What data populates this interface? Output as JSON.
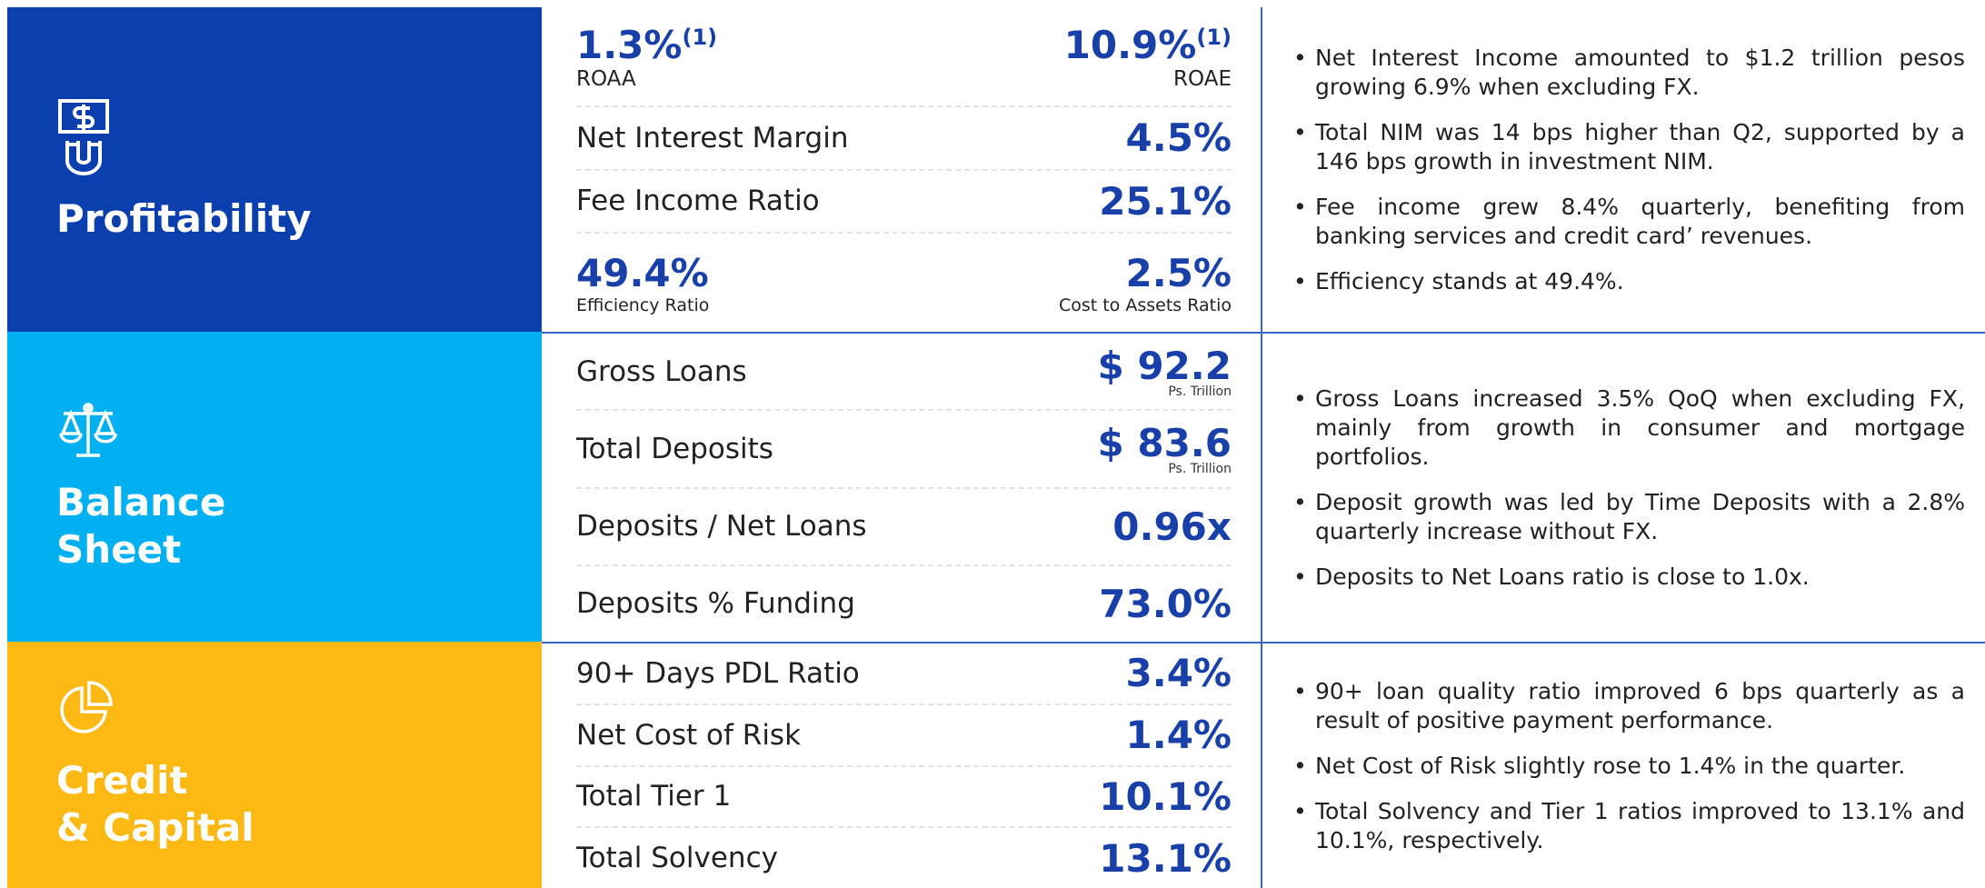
{
  "sections": [
    {
      "title": [
        "Profitability"
      ],
      "metrics": [
        {
          "left": {
            "value": "1.3%",
            "note": "(1)",
            "label": "ROAA"
          },
          "right": {
            "value": "10.9%",
            "note": "(1)",
            "label": "ROAE"
          }
        },
        {
          "label": "Net Interest Margin",
          "value": "4.5%"
        },
        {
          "label": "Fee Income Ratio",
          "value": "25.1%"
        },
        {
          "left": {
            "value": "49.4%",
            "label": "Efficiency Ratio"
          },
          "right": {
            "value": "2.5%",
            "label": "Cost to Assets Ratio"
          }
        }
      ],
      "bullets": [
        "Net Interest Income amounted to $1.2 trillion pesos growing 6.9% when excluding FX.",
        "Total NIM was 14 bps higher than Q2, supported by a 146 bps growth in investment NIM.",
        "Fee income grew 8.4% quarterly, benefiting from banking services and credit card’ revenues.",
        "Efficiency stands at 49.4%."
      ]
    },
    {
      "title": [
        "Balance",
        "Sheet"
      ],
      "metrics": [
        {
          "label": "Gross Loans",
          "value": "$ 92.2",
          "unit": "Ps. Trillion"
        },
        {
          "label": "Total Deposits",
          "value": "$ 83.6",
          "unit": "Ps. Trillion"
        },
        {
          "label": "Deposits / Net Loans",
          "value": "0.96x"
        },
        {
          "label": "Deposits % Funding",
          "value": "73.0%"
        }
      ],
      "bullets": [
        "Gross Loans increased 3.5% QoQ when excluding FX, mainly from growth in consumer and mortgage portfolios.",
        "Deposit growth was led by Time Deposits with a 2.8% quarterly increase without FX.",
        "Deposits to Net Loans ratio is close to 1.0x."
      ]
    },
    {
      "title": [
        "Credit",
        "& Capital"
      ],
      "metrics": [
        {
          "label": "90+ Days PDL Ratio",
          "value": "3.4%"
        },
        {
          "label": "Net Cost of Risk",
          "value": "1.4%"
        },
        {
          "label": "Total Tier 1",
          "value": "10.1%"
        },
        {
          "label": "Total Solvency",
          "value": "13.1%"
        }
      ],
      "bullets": [
        "90+ loan quality ratio improved 6 bps quarterly as a result of positive payment performance.",
        "Net Cost of Risk slightly rose to 1.4% in the quarter.",
        "Total Solvency and Tier 1 ratios improved to 13.1% and 10.1%, respectively."
      ]
    }
  ]
}
